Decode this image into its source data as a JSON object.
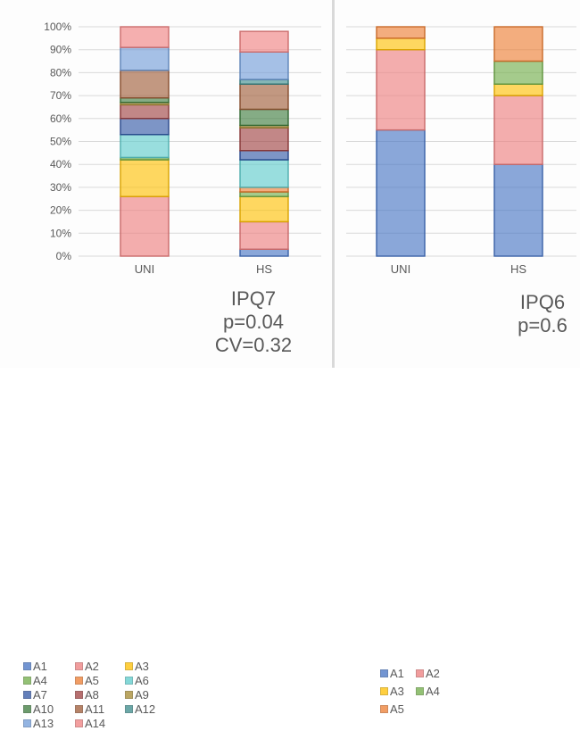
{
  "chart_data": [
    {
      "type": "bar",
      "stacked": true,
      "percent": true,
      "categories": [
        "UNI",
        "HS"
      ],
      "ylim": [
        0,
        100
      ],
      "yticks": [
        "0%",
        "10%",
        "20%",
        "30%",
        "40%",
        "50%",
        "60%",
        "70%",
        "80%",
        "90%",
        "100%"
      ],
      "grid": true,
      "legend_position": "bottom-left",
      "series": [
        {
          "name": "A1",
          "color": "#4472c4",
          "values": [
            0,
            3
          ]
        },
        {
          "name": "A2",
          "color": "#ed7d7d",
          "values": [
            26,
            12
          ]
        },
        {
          "name": "A3",
          "color": "#ffc000",
          "values": [
            16,
            11
          ]
        },
        {
          "name": "A4",
          "color": "#70ad47",
          "values": [
            1,
            2
          ]
        },
        {
          "name": "A5",
          "color": "#ed7d31",
          "values": [
            0,
            2
          ]
        },
        {
          "name": "A6",
          "color": "#5ccccc",
          "values": [
            10,
            12
          ]
        },
        {
          "name": "A7",
          "color": "#2f55a4",
          "values": [
            7,
            4
          ]
        },
        {
          "name": "A8",
          "color": "#9e3f3f",
          "values": [
            6,
            10
          ]
        },
        {
          "name": "A9",
          "color": "#a5892f",
          "values": [
            1,
            1
          ]
        },
        {
          "name": "A10",
          "color": "#3b7a3b",
          "values": [
            2,
            7
          ]
        },
        {
          "name": "A11",
          "color": "#9e5a36",
          "values": [
            12,
            11
          ]
        },
        {
          "name": "A12",
          "color": "#3a8a8a",
          "values": [
            0,
            2
          ]
        },
        {
          "name": "A13",
          "color": "#6f9bd9",
          "values": [
            10,
            12
          ]
        },
        {
          "name": "A14",
          "color": "#f08080",
          "values": [
            9,
            9
          ]
        }
      ],
      "annotation": [
        "IPQ7",
        "p=0.04",
        "CV=0.32"
      ]
    },
    {
      "type": "bar",
      "stacked": true,
      "percent": true,
      "categories": [
        "UNI",
        "HS"
      ],
      "ylim": [
        0,
        100
      ],
      "grid": true,
      "legend_position": "bottom-left",
      "series": [
        {
          "name": "A1",
          "color": "#4472c4",
          "values": [
            55,
            40
          ]
        },
        {
          "name": "A2",
          "color": "#ed7d7d",
          "values": [
            35,
            30
          ]
        },
        {
          "name": "A3",
          "color": "#ffc000",
          "values": [
            5,
            5
          ]
        },
        {
          "name": "A4",
          "color": "#70ad47",
          "values": [
            0,
            10
          ]
        },
        {
          "name": "A5",
          "color": "#ed7d31",
          "values": [
            5,
            15
          ]
        }
      ],
      "annotation": [
        "IPQ6",
        "p=0.6"
      ]
    }
  ]
}
